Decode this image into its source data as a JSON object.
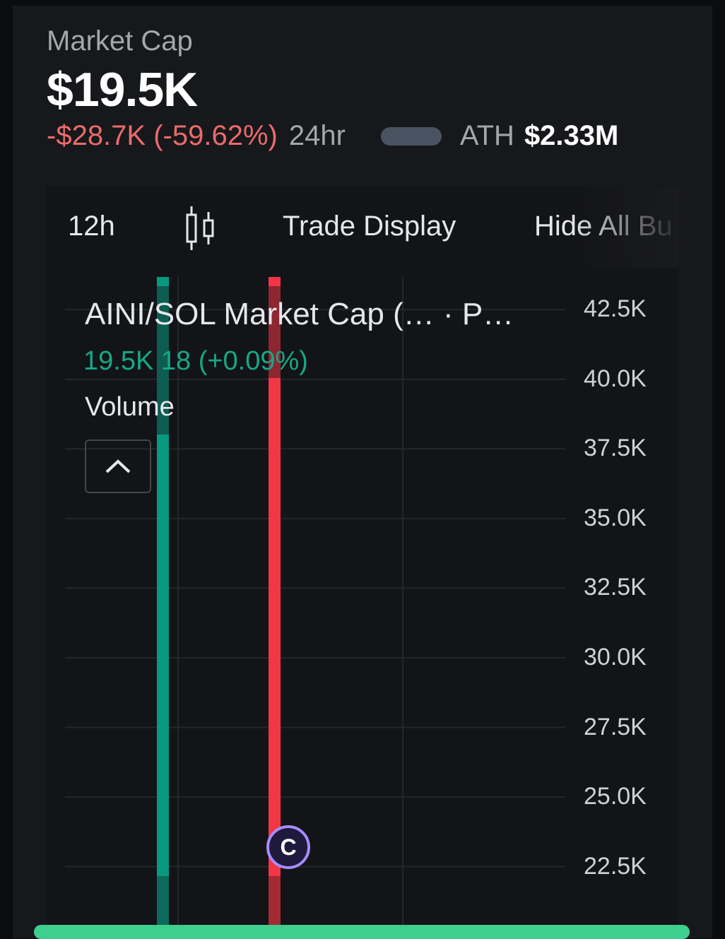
{
  "header": {
    "label": "Market Cap",
    "value": "$19.5K",
    "change": "-$28.7K (-59.62%)",
    "period": "24hr",
    "ath_label": "ATH",
    "ath_value": "$2.33M"
  },
  "toolbar": {
    "interval": "12h",
    "chart_type_icon": "candlestick-icon",
    "trade_display": "Trade Display",
    "hide_all": "Hide All Bu"
  },
  "legend": {
    "title": "AINI/SOL Market Cap (…  · P…",
    "values": "19.5K  18 (+0.09%)",
    "volume": "Volume",
    "collapse_icon": "chevron-up-icon"
  },
  "marker": {
    "label": "C"
  },
  "colors": {
    "up": "#089981",
    "down": "#f23645",
    "accent": "#a78bfa",
    "negative_text": "#ea6b6b"
  },
  "chart_data": {
    "type": "candlestick",
    "y_ticks": [
      "42.5K",
      "40.0K",
      "37.5K",
      "35.0K",
      "32.5K",
      "30.0K",
      "27.5K",
      "25.0K",
      "22.5K"
    ],
    "y_tick_values": [
      42500,
      40000,
      37500,
      35000,
      32500,
      30000,
      27500,
      25000,
      22500
    ],
    "ylim": [
      20260,
      43670
    ],
    "grid": true,
    "candles": [
      {
        "direction": "up",
        "low": 20000,
        "high": 44000
      },
      {
        "direction": "down",
        "low": 20000,
        "high": 44000
      }
    ]
  }
}
